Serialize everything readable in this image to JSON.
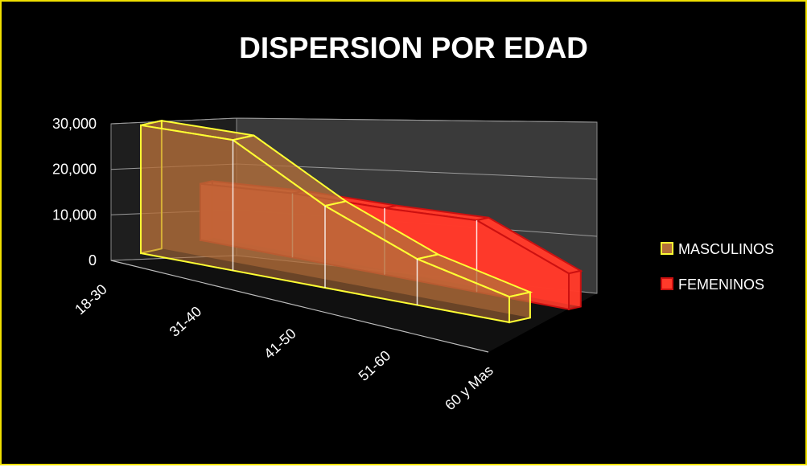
{
  "chart_data": {
    "type": "area",
    "title": "DISPERSION POR EDAD",
    "categories": [
      "18-30",
      "31-40",
      "41-50",
      "51-60",
      "60 y Mas"
    ],
    "y_ticks": [
      "0",
      "10,000",
      "20,000",
      "30,000"
    ],
    "ylim": [
      0,
      30000
    ],
    "series": [
      {
        "name": "MASCULINOS",
        "values": [
          25000,
          25500,
          16000,
          9000,
          5000
        ],
        "color": "#b4703a",
        "edge_color": "#ffff33"
      },
      {
        "name": "FEMENINOS",
        "values": [
          11000,
          12500,
          13000,
          14000,
          7000
        ],
        "color": "#ff3a2a",
        "edge_color": "#cc1010"
      }
    ],
    "grid": true,
    "legend_position": "right",
    "colors": {
      "background": "#000000",
      "frame": "#f0e000",
      "text": "#ffffff"
    }
  }
}
